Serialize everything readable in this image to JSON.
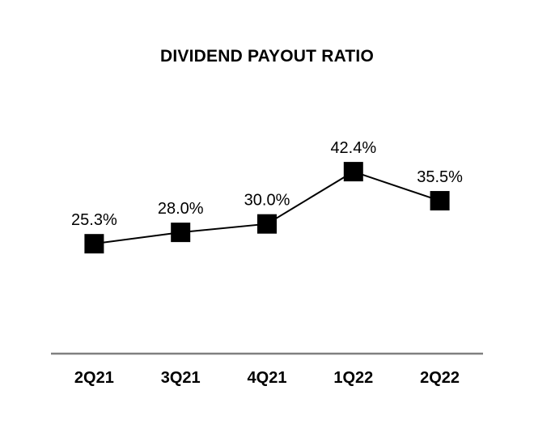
{
  "chart_data": {
    "type": "line",
    "title": "DIVIDEND PAYOUT RATIO",
    "categories": [
      "2Q21",
      "3Q21",
      "4Q21",
      "1Q22",
      "2Q22"
    ],
    "values": [
      25.3,
      28.0,
      30.0,
      42.4,
      35.5
    ],
    "data_labels": [
      "25.3%",
      "28.0%",
      "30.0%",
      "42.4%",
      "35.5%"
    ],
    "xlabel": "",
    "ylabel": "",
    "ylim": [
      0,
      60
    ],
    "y_axis_visible": false,
    "grid": false,
    "legend": false,
    "marker_shape": "square",
    "line_color": "#000000",
    "marker_color": "#000000",
    "label_color": "#000000",
    "axis_line_color": "#808080",
    "background_color": "#ffffff"
  }
}
